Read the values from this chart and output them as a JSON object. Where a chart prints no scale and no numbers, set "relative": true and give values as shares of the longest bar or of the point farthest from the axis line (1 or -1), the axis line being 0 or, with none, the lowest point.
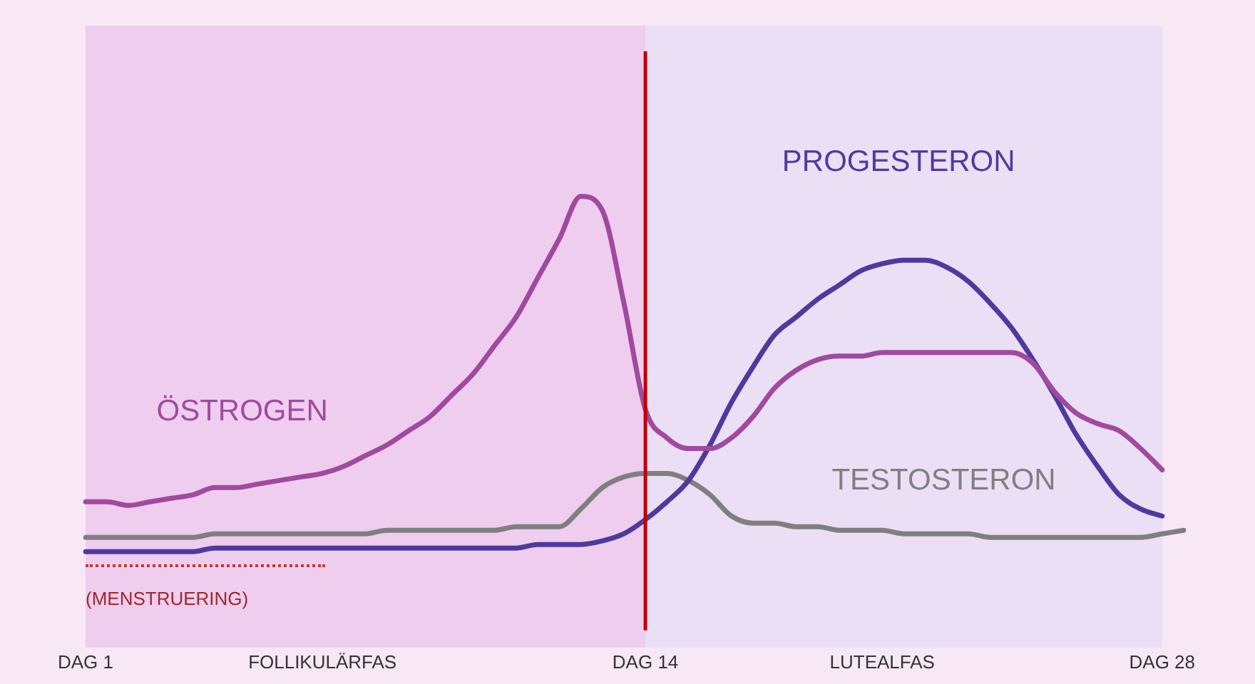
{
  "chart_data": {
    "type": "line",
    "relative": true,
    "grid": false,
    "legend": false,
    "marker": "none",
    "line_style": "solid",
    "categories": [
      "DAG 1",
      null,
      null,
      null,
      null,
      null,
      null,
      null,
      null,
      null,
      null,
      "FOLLIKULÄRFAS",
      null,
      null,
      null,
      null,
      null,
      null,
      null,
      null,
      null,
      null,
      null,
      null,
      null,
      null,
      "DAG 14",
      null,
      null,
      null,
      null,
      null,
      null,
      null,
      null,
      null,
      null,
      "LUTEALFAS",
      null,
      null,
      null,
      null,
      null,
      null,
      null,
      null,
      null,
      null,
      null,
      null,
      "DAG 28",
      null
    ],
    "series": [
      {
        "name": "ÖSTROGEN",
        "color": "#a04a9f",
        "values": [
          0.14,
          0.14,
          0.13,
          0.14,
          0.15,
          0.16,
          0.18,
          0.18,
          0.19,
          0.2,
          0.21,
          0.22,
          0.24,
          0.27,
          0.3,
          0.34,
          0.38,
          0.44,
          0.5,
          0.58,
          0.66,
          0.77,
          0.88,
          1.0,
          0.96,
          0.7,
          0.4,
          0.32,
          0.29,
          0.29,
          0.32,
          0.38,
          0.46,
          0.51,
          0.54,
          0.55,
          0.55,
          0.56,
          0.56,
          0.56,
          0.56,
          0.56,
          0.56,
          0.56,
          0.53,
          0.45,
          0.39,
          0.36,
          0.34,
          0.29,
          0.23,
          null
        ]
      },
      {
        "name": "PROGESTERON",
        "color": "#4e3a9e",
        "values": [
          0.0,
          0.0,
          0.0,
          0.0,
          0.0,
          0.0,
          0.01,
          0.01,
          0.01,
          0.01,
          0.01,
          0.01,
          0.01,
          0.01,
          0.01,
          0.01,
          0.01,
          0.01,
          0.01,
          0.01,
          0.01,
          0.02,
          0.02,
          0.02,
          0.03,
          0.05,
          0.09,
          0.14,
          0.2,
          0.3,
          0.42,
          0.52,
          0.61,
          0.66,
          0.71,
          0.75,
          0.79,
          0.81,
          0.82,
          0.82,
          0.8,
          0.76,
          0.7,
          0.63,
          0.54,
          0.44,
          0.33,
          0.24,
          0.16,
          0.12,
          0.1,
          null
        ]
      },
      {
        "name": "TESTOSTERON",
        "color": "#7f7f7f",
        "values": [
          0.04,
          0.04,
          0.04,
          0.04,
          0.04,
          0.04,
          0.05,
          0.05,
          0.05,
          0.05,
          0.05,
          0.05,
          0.05,
          0.05,
          0.06,
          0.06,
          0.06,
          0.06,
          0.06,
          0.06,
          0.07,
          0.07,
          0.07,
          0.12,
          0.18,
          0.21,
          0.22,
          0.22,
          0.2,
          0.16,
          0.1,
          0.08,
          0.08,
          0.07,
          0.07,
          0.06,
          0.06,
          0.06,
          0.05,
          0.05,
          0.05,
          0.05,
          0.04,
          0.04,
          0.04,
          0.04,
          0.04,
          0.04,
          0.04,
          0.04,
          0.05,
          0.06
        ]
      }
    ],
    "bands": [
      {
        "axis": "x",
        "from": "DAG 1",
        "to": "DAG 14",
        "color": "#efcdef"
      },
      {
        "axis": "x",
        "from": "DAG 14",
        "to": "DAG 28",
        "color": "#ebdff5"
      }
    ],
    "annotations": [
      "(MENSTRUERING)"
    ],
    "ref_lines": [
      {
        "axis": "x",
        "value": "DAG 14",
        "color": "#c00000"
      }
    ]
  }
}
